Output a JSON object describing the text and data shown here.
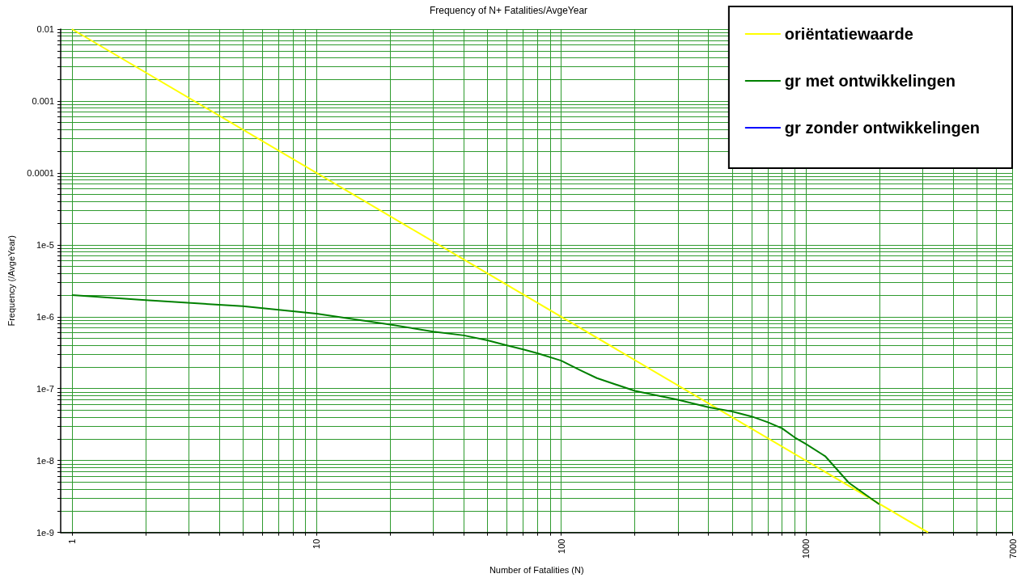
{
  "chart_data": {
    "type": "line",
    "title": "Frequency of N+ Fatalities/AvgeYear",
    "xlabel": "Number of Fatalities (N)",
    "ylabel": "Frequency (/AvgeYear)",
    "log": "xy",
    "grid": true,
    "legend": "top right",
    "marker": "none",
    "line_style": "solid",
    "xlim": [
      0.9,
      7000
    ],
    "ylim": [
      1e-09,
      0.01
    ],
    "xticks": [
      1,
      {
        "value": 2,
        "label": null
      },
      {
        "value": 3,
        "label": null
      },
      {
        "value": 4,
        "label": null
      },
      {
        "value": 5,
        "label": null
      },
      {
        "value": 6,
        "label": null
      },
      {
        "value": 7,
        "label": null
      },
      {
        "value": 8,
        "label": null
      },
      {
        "value": 9,
        "label": null
      },
      10,
      {
        "value": 20,
        "label": null
      },
      {
        "value": 30,
        "label": null
      },
      {
        "value": 40,
        "label": null
      },
      {
        "value": 50,
        "label": null
      },
      {
        "value": 60,
        "label": null
      },
      {
        "value": 70,
        "label": null
      },
      {
        "value": 80,
        "label": null
      },
      {
        "value": 90,
        "label": null
      },
      100,
      {
        "value": 200,
        "label": null
      },
      {
        "value": 300,
        "label": null
      },
      {
        "value": 400,
        "label": null
      },
      {
        "value": 500,
        "label": null
      },
      {
        "value": 600,
        "label": null
      },
      {
        "value": 700,
        "label": null
      },
      {
        "value": 800,
        "label": null
      },
      {
        "value": 900,
        "label": null
      },
      1000,
      {
        "value": 2000,
        "label": null
      },
      {
        "value": 3000,
        "label": null
      },
      {
        "value": 4000,
        "label": null
      },
      {
        "value": 5000,
        "label": null
      },
      {
        "value": 6000,
        "label": null
      },
      7000
    ],
    "yticks": [
      {
        "value": 1e-09,
        "label": "1e-9"
      },
      {
        "value": 2e-09,
        "label": null
      },
      {
        "value": 3e-09,
        "label": null
      },
      {
        "value": 4e-09,
        "label": null
      },
      {
        "value": 5e-09,
        "label": null
      },
      {
        "value": 6e-09,
        "label": null
      },
      {
        "value": 7e-09,
        "label": null
      },
      {
        "value": 8e-09,
        "label": null
      },
      {
        "value": 9e-09,
        "label": null
      },
      {
        "value": 1e-08,
        "label": "1e-8"
      },
      {
        "value": 2e-08,
        "label": null
      },
      {
        "value": 3e-08,
        "label": null
      },
      {
        "value": 4e-08,
        "label": null
      },
      {
        "value": 5e-08,
        "label": null
      },
      {
        "value": 6e-08,
        "label": null
      },
      {
        "value": 7e-08,
        "label": null
      },
      {
        "value": 8e-08,
        "label": null
      },
      {
        "value": 9e-08,
        "label": null
      },
      {
        "value": 1e-07,
        "label": "1e-7"
      },
      {
        "value": 2e-07,
        "label": null
      },
      {
        "value": 3e-07,
        "label": null
      },
      {
        "value": 4e-07,
        "label": null
      },
      {
        "value": 5e-07,
        "label": null
      },
      {
        "value": 6e-07,
        "label": null
      },
      {
        "value": 7e-07,
        "label": null
      },
      {
        "value": 8e-07,
        "label": null
      },
      {
        "value": 9e-07,
        "label": null
      },
      {
        "value": 1e-06,
        "label": "1e-6"
      },
      {
        "value": 2e-06,
        "label": null
      },
      {
        "value": 3e-06,
        "label": null
      },
      {
        "value": 4e-06,
        "label": null
      },
      {
        "value": 5e-06,
        "label": null
      },
      {
        "value": 6e-06,
        "label": null
      },
      {
        "value": 7e-06,
        "label": null
      },
      {
        "value": 8e-06,
        "label": null
      },
      {
        "value": 9e-06,
        "label": null
      },
      {
        "value": 1e-05,
        "label": "1e-5"
      },
      {
        "value": 2e-05,
        "label": null
      },
      {
        "value": 3e-05,
        "label": null
      },
      {
        "value": 4e-05,
        "label": null
      },
      {
        "value": 5e-05,
        "label": null
      },
      {
        "value": 6e-05,
        "label": null
      },
      {
        "value": 7e-05,
        "label": null
      },
      {
        "value": 8e-05,
        "label": null
      },
      {
        "value": 9e-05,
        "label": null
      },
      {
        "value": 0.0001,
        "label": "0.0001"
      },
      {
        "value": 0.0002,
        "label": null
      },
      {
        "value": 0.0003,
        "label": null
      },
      {
        "value": 0.0004,
        "label": null
      },
      {
        "value": 0.0005,
        "label": null
      },
      {
        "value": 0.0006,
        "label": null
      },
      {
        "value": 0.0007,
        "label": null
      },
      {
        "value": 0.0008,
        "label": null
      },
      {
        "value": 0.0009,
        "label": null
      },
      {
        "value": 0.001,
        "label": "0.001"
      },
      {
        "value": 0.002,
        "label": null
      },
      {
        "value": 0.003,
        "label": null
      },
      {
        "value": 0.004,
        "label": null
      },
      {
        "value": 0.005,
        "label": null
      },
      {
        "value": 0.006,
        "label": null
      },
      {
        "value": 0.007,
        "label": null
      },
      {
        "value": 0.008,
        "label": null
      },
      {
        "value": 0.009,
        "label": null
      },
      {
        "value": 0.01,
        "label": "0.01"
      }
    ],
    "series": [
      {
        "name": "oriëntatiewaarde",
        "color": "#ffff00",
        "x": [
          1,
          3160
        ],
        "values": [
          0.01,
          1e-09
        ]
      },
      {
        "name": "gr met ontwikkelingen",
        "color": "#008000",
        "x": [
          1,
          2,
          5,
          10,
          20,
          30,
          40,
          50,
          60,
          70,
          80,
          100,
          120,
          140,
          200,
          300,
          400,
          500,
          600,
          700,
          800,
          900,
          1000,
          1200,
          1500,
          2000
        ],
        "values": [
          2e-06,
          1.7e-06,
          1.4e-06,
          1.1e-06,
          7.8e-07,
          6.2e-07,
          5.5e-07,
          4.7e-07,
          4e-07,
          3.5e-07,
          3.1e-07,
          2.45e-07,
          1.8e-07,
          1.4e-07,
          9.3e-08,
          7e-08,
          5.5e-08,
          4.8e-08,
          4.1e-08,
          3.4e-08,
          2.8e-08,
          2.1e-08,
          1.7e-08,
          1.15e-08,
          4.9e-09,
          2.45e-09
        ]
      },
      {
        "name": "gr zonder ontwikkelingen",
        "color": "#0000ff"
      }
    ]
  }
}
